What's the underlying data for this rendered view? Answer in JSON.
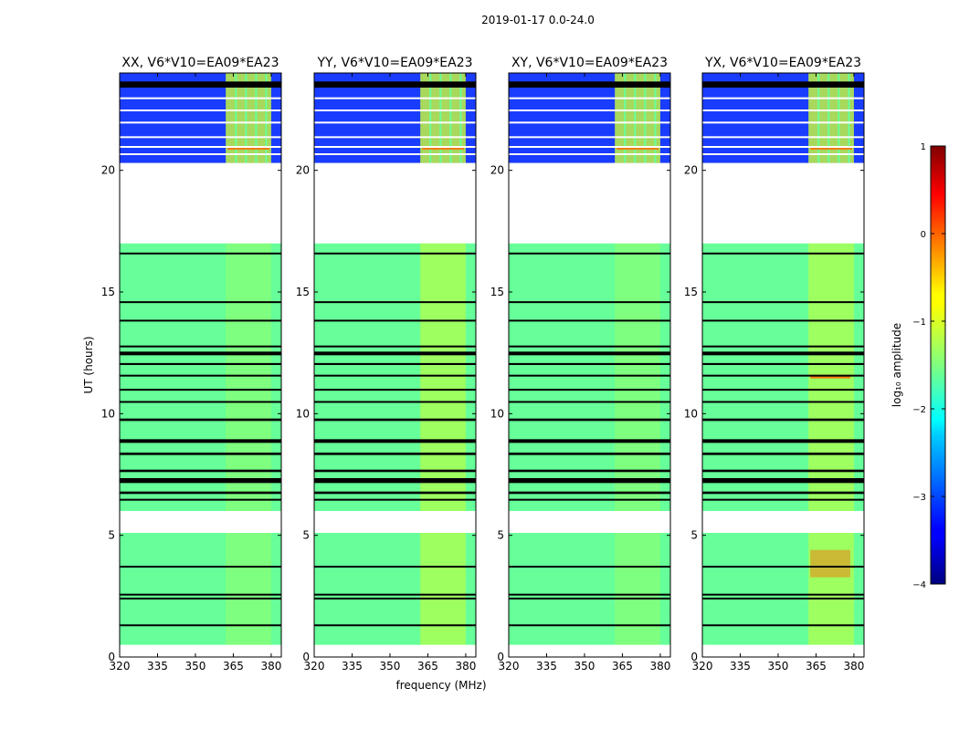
{
  "figure": {
    "suptitle": "2019-01-17 0.0-24.0"
  },
  "chart_data": {
    "type": "heatmap",
    "xlabel": "frequency (MHz)",
    "ylabel": "UT (hours)",
    "xlim": [
      320,
      384
    ],
    "ylim": [
      0,
      24
    ],
    "xticks": [
      320,
      335,
      350,
      365,
      380
    ],
    "yticks": [
      0,
      5,
      10,
      15,
      20
    ],
    "panels": [
      {
        "title": "XX, V6*V10=EA09*EA23"
      },
      {
        "title": "YY, V6*V10=EA09*EA23"
      },
      {
        "title": "XY, V6*V10=EA09*EA23"
      },
      {
        "title": "YX, V6*V10=EA09*EA23"
      }
    ],
    "colorbar": {
      "label": "log₁₀ amplitude",
      "range": [
        -4,
        1
      ],
      "ticks": [
        1,
        0,
        -1,
        -2,
        -3,
        -4
      ],
      "tick_labels": [
        "1",
        "0",
        "−1",
        "−2",
        "−3",
        "−4"
      ],
      "colormap": "jet"
    },
    "data_gaps_ut": [
      [
        0,
        0.5
      ],
      [
        5.1,
        6.0
      ],
      [
        17.0,
        20.3
      ]
    ],
    "flagged_rows_ut": [
      [
        23.4,
        23.65
      ],
      [
        16.55,
        16.62
      ],
      [
        14.55,
        14.62
      ],
      [
        13.8,
        13.86
      ],
      [
        12.75,
        12.8
      ],
      [
        12.4,
        12.55
      ],
      [
        12.0,
        12.08
      ],
      [
        11.55,
        11.6
      ],
      [
        10.95,
        11.02
      ],
      [
        10.45,
        10.52
      ],
      [
        9.7,
        9.8
      ],
      [
        8.8,
        8.95
      ],
      [
        8.3,
        8.4
      ],
      [
        7.6,
        7.7
      ],
      [
        7.15,
        7.35
      ],
      [
        6.7,
        6.8
      ],
      [
        6.45,
        6.5
      ],
      [
        3.7,
        3.75
      ],
      [
        2.55,
        2.6
      ],
      [
        2.4,
        2.44
      ],
      [
        1.3,
        1.34
      ]
    ],
    "bright_band_mhz": [
      362,
      380
    ],
    "colors": {
      "high_ut_background": "#1a3cff",
      "low_ut_background": "#66ff99",
      "band_highlight": "#ccff33",
      "hot_spot": "#ff6600",
      "flag": "#000000"
    }
  }
}
